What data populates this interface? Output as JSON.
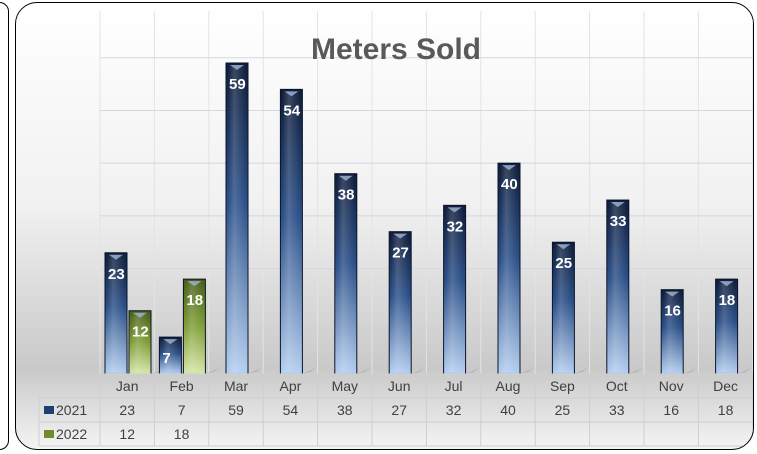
{
  "chart_data": {
    "type": "bar",
    "title": "Meters Sold",
    "categories": [
      "Jan",
      "Feb",
      "Mar",
      "Apr",
      "May",
      "Jun",
      "Jul",
      "Aug",
      "Sep",
      "Oct",
      "Nov",
      "Dec"
    ],
    "series": [
      {
        "name": "2021",
        "values": [
          23,
          7,
          59,
          54,
          38,
          27,
          32,
          40,
          25,
          33,
          16,
          18
        ],
        "color": "#1f3e73"
      },
      {
        "name": "2022",
        "values": [
          12,
          18,
          null,
          null,
          null,
          null,
          null,
          null,
          null,
          null,
          null,
          null
        ],
        "color": "#6f8b2c"
      }
    ],
    "ylim": [
      0,
      60
    ],
    "data_table": true,
    "grid": true
  }
}
